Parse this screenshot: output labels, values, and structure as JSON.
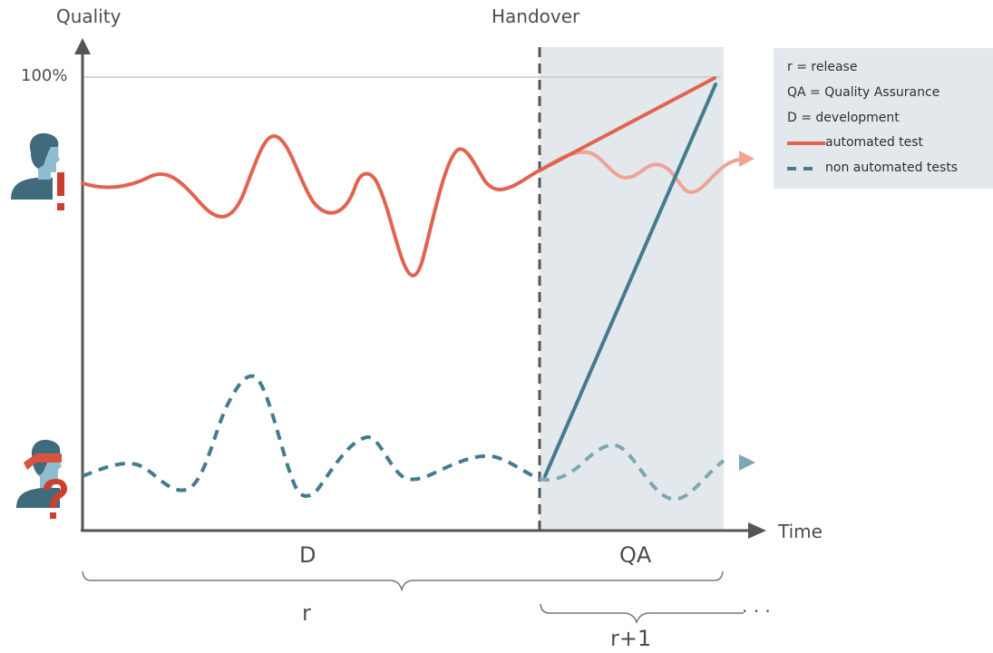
{
  "axes": {
    "y_title": "Quality",
    "x_title": "Time",
    "y_tick_100": "100%"
  },
  "handover_label": "Handover",
  "phases": {
    "development": "D",
    "qa": "QA"
  },
  "releases": {
    "current": "r",
    "next": "r+1",
    "ellipsis": "· · ·"
  },
  "legend": {
    "items": [
      "r = release",
      "QA = Quality Assurance",
      "D = development",
      "automated test",
      "non automated tests"
    ]
  },
  "colors": {
    "automated": "#e0644f",
    "automated_faded": "#f0a495",
    "non_automated": "#437c8c",
    "non_automated_faded": "#7ea7b2",
    "qa_region": "#e2e8ec",
    "legend_bg": "#e2e8ec",
    "axis": "#555555",
    "person_face": "#8fbcd0",
    "person_body": "#3f6b7c",
    "blindfold": "#d9533d",
    "marker": "#c9402f"
  },
  "markers": {
    "informed": "!",
    "uninformed": "?"
  },
  "icons": [
    "person-informed-icon",
    "person-blindfolded-icon",
    "arrow-right-icon"
  ]
}
